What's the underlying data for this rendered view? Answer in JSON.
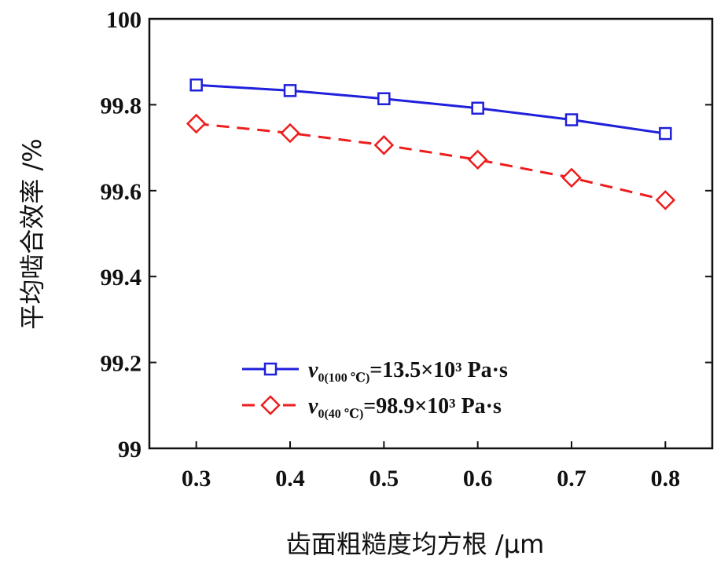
{
  "chart_data": {
    "type": "line",
    "xlabel": "齿面粗糙度均方根 /μm",
    "ylabel": "平均啮合效率 /%",
    "x": [
      0.3,
      0.4,
      0.5,
      0.6,
      0.7,
      0.8
    ],
    "xlim": [
      0.25,
      0.85
    ],
    "ylim": [
      99.0,
      100.0
    ],
    "xticks": [
      "0.3",
      "0.4",
      "0.5",
      "0.6",
      "0.7",
      "0.8"
    ],
    "yticks": [
      "99",
      "99.2",
      "99.4",
      "99.6",
      "99.8",
      "100"
    ],
    "xtick_values": [
      0.3,
      0.4,
      0.5,
      0.6,
      0.7,
      0.8
    ],
    "ytick_values": [
      99.0,
      99.2,
      99.4,
      99.6,
      99.8,
      100.0
    ],
    "grid": false,
    "legend_placement": "bottom-center",
    "series": [
      {
        "legend_symbol": "ν",
        "legend_subscript": "0(100 ℃)",
        "legend_rest": "=13.5×10³ Pa·s",
        "values": [
          99.846,
          99.833,
          99.814,
          99.792,
          99.765,
          99.733
        ],
        "color": "#1f1fdc",
        "line_style": "solid",
        "marker": "square"
      },
      {
        "legend_symbol": "ν",
        "legend_subscript": "0(40 ℃)",
        "legend_rest": "=98.9×10³ Pa·s",
        "values": [
          99.756,
          99.734,
          99.706,
          99.672,
          99.63,
          99.578
        ],
        "color": "#ee1c1c",
        "line_style": "dashed",
        "marker": "diamond"
      }
    ]
  }
}
